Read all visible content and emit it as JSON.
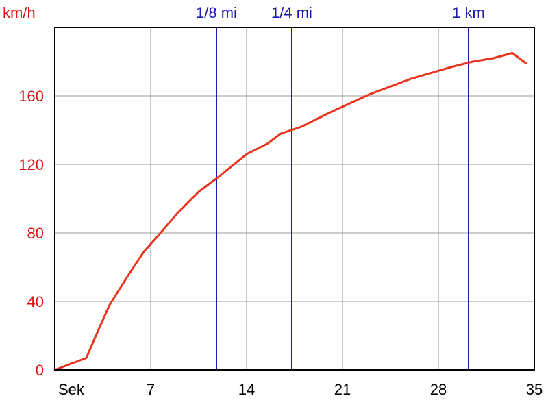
{
  "chart_data": {
    "type": "line",
    "title": "",
    "xlabel": "Sek",
    "ylabel": "km/h",
    "xlim": [
      0,
      35
    ],
    "ylim": [
      0,
      200
    ],
    "x_ticks": [
      7,
      14,
      21,
      28,
      35
    ],
    "y_ticks": [
      0,
      40,
      80,
      120,
      160
    ],
    "grid": true,
    "series": [
      {
        "color": "#e8341c",
        "x": [
          0,
          2.3,
          3.0,
          4.0,
          5.5,
          6.5,
          7.5,
          9.0,
          10.5,
          12.0,
          14.0,
          15.5,
          16.5,
          18.0,
          20.0,
          23.0,
          26.0,
          29.0,
          30.5,
          32.0,
          33.4,
          34.4
        ],
        "y": [
          0,
          7,
          20,
          38,
          57,
          69,
          78,
          92,
          104,
          113,
          126,
          132,
          138,
          142,
          150,
          161,
          170,
          177,
          180,
          182,
          185,
          179
        ]
      }
    ],
    "markers": [
      {
        "label": "1/8 mi",
        "x": 11.8,
        "color": "#1a1ab0"
      },
      {
        "label": "1/4 mi",
        "x": 17.3,
        "color": "#1a1ab0"
      },
      {
        "label": "1 km",
        "x": 30.2,
        "color": "#1a1ab0"
      }
    ]
  }
}
